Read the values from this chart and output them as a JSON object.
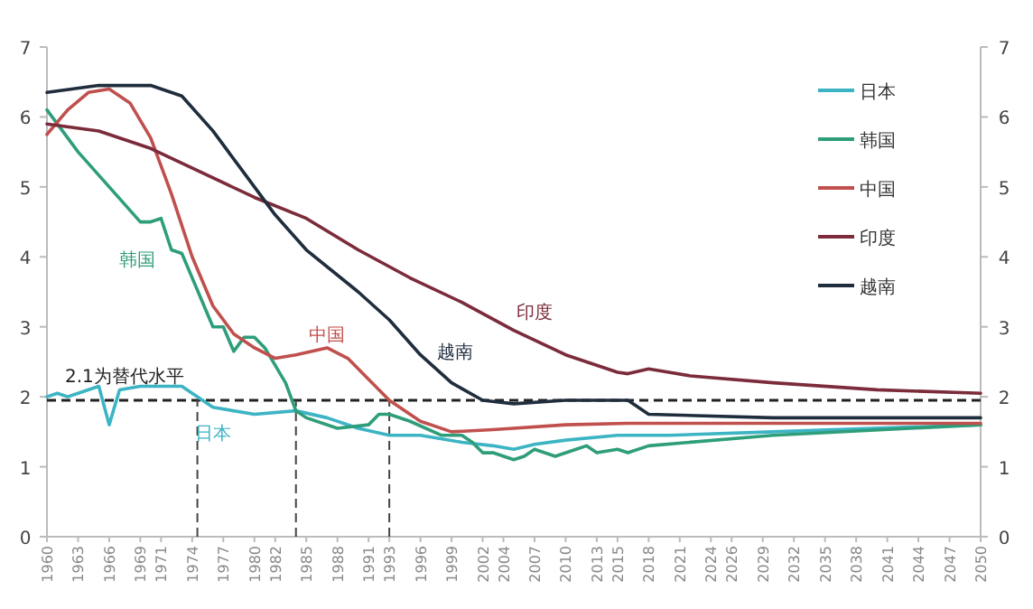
{
  "chart_data": {
    "type": "line",
    "xlim": [
      1960,
      2050
    ],
    "xticks": [
      1960,
      1963,
      1966,
      1969,
      1971,
      1974,
      1977,
      1980,
      1982,
      1985,
      1988,
      1991,
      1993,
      1996,
      1999,
      2002,
      2004,
      2007,
      2010,
      2013,
      2015,
      2018,
      2021,
      2024,
      2026,
      2029,
      2032,
      2035,
      2038,
      2041,
      2044,
      2047,
      2050
    ],
    "ylim": [
      0,
      7
    ],
    "yticks": [
      0,
      1,
      2,
      3,
      4,
      5,
      6,
      7
    ],
    "y2lim": [
      0,
      7
    ],
    "y2ticks": [
      0,
      1,
      2,
      3,
      4,
      5,
      6,
      7
    ],
    "grid": false,
    "legend": "top right",
    "marker": "none",
    "line_style": "solid",
    "series": [
      {
        "name": "日本",
        "color": "#3cb4c4",
        "x": [
          1960,
          1961,
          1962,
          1963,
          1965,
          1966,
          1967,
          1969,
          1971,
          1973,
          1974,
          1976,
          1980,
          1984,
          1987,
          1990,
          1993,
          1996,
          2000,
          2003,
          2005,
          2007,
          2010,
          2015,
          2020,
          2030,
          2050
        ],
        "values": [
          2.0,
          2.05,
          2.0,
          2.05,
          2.15,
          1.6,
          2.1,
          2.15,
          2.15,
          2.15,
          2.05,
          1.85,
          1.75,
          1.8,
          1.7,
          1.55,
          1.45,
          1.45,
          1.35,
          1.3,
          1.25,
          1.32,
          1.38,
          1.45,
          1.45,
          1.5,
          1.6
        ]
      },
      {
        "name": "韩国",
        "color": "#2e9e7a",
        "x": [
          1960,
          1963,
          1966,
          1969,
          1970,
          1971,
          1972,
          1973,
          1976,
          1977,
          1978,
          1979,
          1980,
          1981,
          1983,
          1984,
          1985,
          1988,
          1991,
          1992,
          1993,
          1995,
          1998,
          2000,
          2001,
          2002,
          2003,
          2005,
          2006,
          2007,
          2009,
          2011,
          2012,
          2013,
          2015,
          2016,
          2018,
          2030,
          2050
        ],
        "values": [
          6.1,
          5.5,
          5.0,
          4.5,
          4.5,
          4.55,
          4.1,
          4.05,
          3.0,
          3.0,
          2.65,
          2.85,
          2.85,
          2.7,
          2.2,
          1.8,
          1.7,
          1.55,
          1.6,
          1.75,
          1.75,
          1.65,
          1.45,
          1.45,
          1.35,
          1.2,
          1.2,
          1.1,
          1.15,
          1.25,
          1.15,
          1.25,
          1.3,
          1.2,
          1.25,
          1.2,
          1.3,
          1.45,
          1.6
        ]
      },
      {
        "name": "中国",
        "color": "#c0504d",
        "x": [
          1960,
          1962,
          1964,
          1966,
          1968,
          1970,
          1972,
          1974,
          1976,
          1978,
          1980,
          1982,
          1984,
          1987,
          1989,
          1991,
          1993,
          1996,
          1999,
          2003,
          2010,
          2016,
          2030,
          2050
        ],
        "values": [
          5.75,
          6.1,
          6.35,
          6.4,
          6.2,
          5.7,
          4.9,
          4.0,
          3.3,
          2.9,
          2.7,
          2.55,
          2.6,
          2.7,
          2.55,
          2.25,
          1.95,
          1.65,
          1.5,
          1.53,
          1.6,
          1.62,
          1.62,
          1.62
        ]
      },
      {
        "name": "印度",
        "color": "#7b2b3a",
        "x": [
          1960,
          1965,
          1970,
          1975,
          1980,
          1985,
          1990,
          1995,
          2000,
          2005,
          2010,
          2015,
          2016,
          2018,
          2022,
          2030,
          2040,
          2050
        ],
        "values": [
          5.9,
          5.8,
          5.55,
          5.2,
          4.85,
          4.55,
          4.1,
          3.7,
          3.35,
          2.95,
          2.6,
          2.35,
          2.33,
          2.4,
          2.3,
          2.2,
          2.1,
          2.05
        ]
      },
      {
        "name": "越南",
        "color": "#1f2d3d",
        "x": [
          1960,
          1965,
          1970,
          1973,
          1976,
          1979,
          1982,
          1985,
          1990,
          1993,
          1996,
          1999,
          2002,
          2005,
          2010,
          2016,
          2018,
          2030,
          2050
        ],
        "values": [
          6.35,
          6.45,
          6.45,
          6.3,
          5.8,
          5.2,
          4.6,
          4.1,
          3.5,
          3.1,
          2.6,
          2.2,
          1.95,
          1.9,
          1.95,
          1.95,
          1.75,
          1.7,
          1.7
        ]
      }
    ],
    "ref_lines": [
      {
        "axis": "y",
        "value": 1.95,
        "label": "2.1为替代水平",
        "color": "#222222",
        "line_style": "dashed"
      },
      {
        "axis": "x",
        "value": 1974.5,
        "color": "#444444",
        "line_style": "dashed"
      },
      {
        "axis": "x",
        "value": 1984,
        "color": "#444444",
        "line_style": "dashed"
      },
      {
        "axis": "x",
        "value": 1993,
        "color": "#444444",
        "line_style": "dashed"
      }
    ],
    "annotations": [
      "韩国",
      "日本",
      {
        "text": "中国",
        "x": 1987,
        "y": 2.8
      },
      "越南",
      "印度"
    ]
  }
}
